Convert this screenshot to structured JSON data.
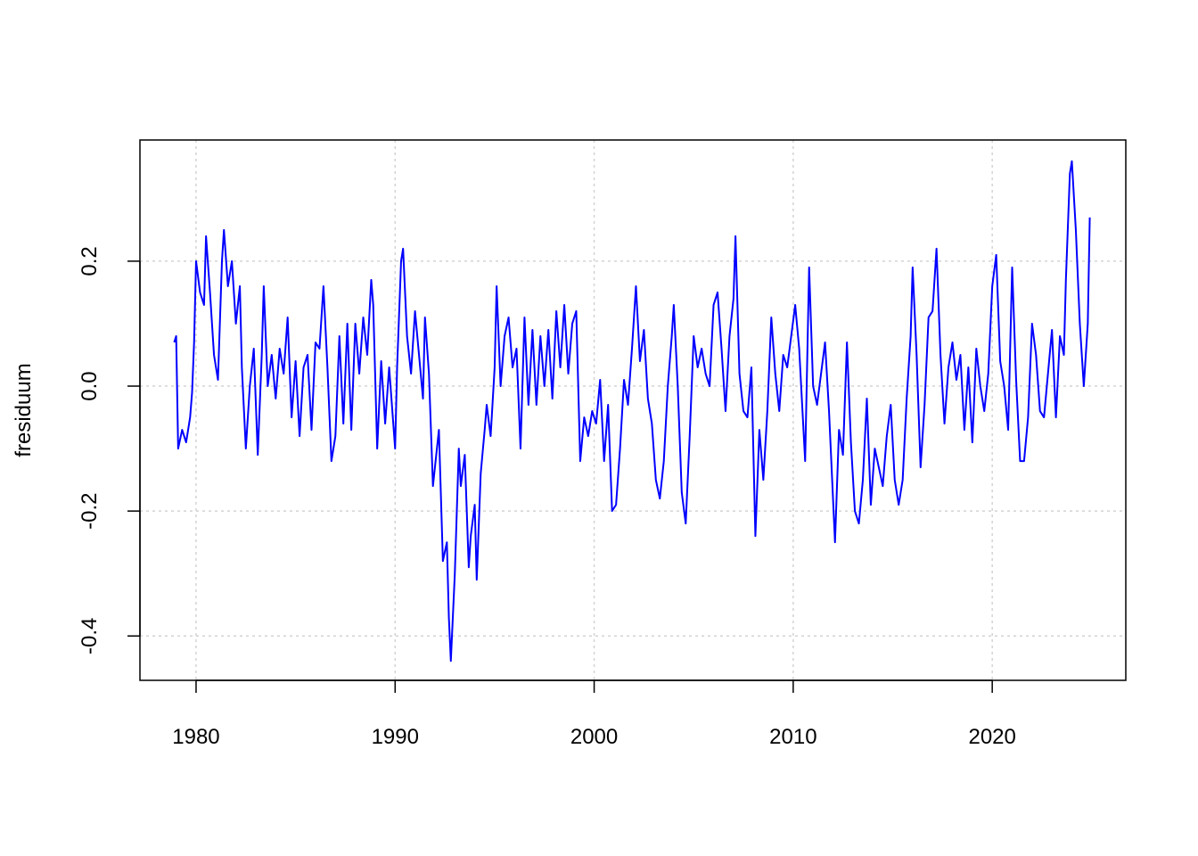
{
  "chart_data": {
    "type": "line",
    "ylabel": "fresiduum",
    "xlim": [
      1977.18,
      2026.71
    ],
    "ylim": [
      -0.471,
      0.394
    ],
    "xticks": [
      1980,
      1990,
      2000,
      2010,
      2020
    ],
    "yticks": [
      -0.4,
      -0.2,
      {
        "value": 0,
        "label": "0.0"
      },
      0.2
    ],
    "grid": true,
    "series": [
      {
        "color": "#0000ff",
        "x": [
          1978.9,
          1979.0,
          1979.1,
          1979.3,
          1979.5,
          1979.7,
          1979.8,
          1979.9,
          1980.0,
          1980.2,
          1980.4,
          1980.5,
          1980.7,
          1980.9,
          1981.1,
          1981.3,
          1981.4,
          1981.6,
          1981.8,
          1982.0,
          1982.2,
          1982.3,
          1982.5,
          1982.7,
          1982.9,
          1983.1,
          1983.3,
          1983.4,
          1983.6,
          1983.8,
          1984.0,
          1984.2,
          1984.4,
          1984.6,
          1984.8,
          1985.0,
          1985.2,
          1985.4,
          1985.6,
          1985.8,
          1986.0,
          1986.2,
          1986.4,
          1986.6,
          1986.8,
          1987.0,
          1987.2,
          1987.4,
          1987.6,
          1987.8,
          1988.0,
          1988.2,
          1988.4,
          1988.6,
          1988.8,
          1988.9,
          1989.1,
          1989.3,
          1989.5,
          1989.7,
          1990.0,
          1990.1,
          1990.3,
          1990.4,
          1990.6,
          1990.8,
          1991.0,
          1991.2,
          1991.4,
          1991.5,
          1991.7,
          1991.9,
          1992.1,
          1992.2,
          1992.4,
          1992.6,
          1992.7,
          1992.8,
          1993.0,
          1993.2,
          1993.3,
          1993.5,
          1993.7,
          1993.8,
          1994.0,
          1994.1,
          1994.3,
          1994.5,
          1994.6,
          1994.8,
          1995.0,
          1995.1,
          1995.3,
          1995.5,
          1995.7,
          1995.9,
          1996.1,
          1996.3,
          1996.5,
          1996.7,
          1996.9,
          1997.1,
          1997.3,
          1997.5,
          1997.7,
          1997.9,
          1998.1,
          1998.3,
          1998.5,
          1998.7,
          1998.9,
          1999.1,
          1999.3,
          1999.5,
          1999.7,
          1999.9,
          2000.1,
          2000.3,
          2000.5,
          2000.7,
          2000.9,
          2001.1,
          2001.3,
          2001.5,
          2001.7,
          2001.9,
          2002.1,
          2002.3,
          2002.5,
          2002.7,
          2002.9,
          2003.1,
          2003.3,
          2003.5,
          2003.7,
          2003.9,
          2004.0,
          2004.2,
          2004.4,
          2004.6,
          2004.8,
          2005.0,
          2005.2,
          2005.4,
          2005.6,
          2005.8,
          2006.0,
          2006.2,
          2006.4,
          2006.6,
          2006.8,
          2007.0,
          2007.1,
          2007.3,
          2007.5,
          2007.7,
          2007.9,
          2008.1,
          2008.3,
          2008.5,
          2008.7,
          2008.9,
          2009.1,
          2009.3,
          2009.5,
          2009.7,
          2009.9,
          2010.1,
          2010.3,
          2010.5,
          2010.6,
          2010.8,
          2011.0,
          2011.2,
          2011.4,
          2011.6,
          2011.8,
          2012.0,
          2012.1,
          2012.3,
          2012.5,
          2012.7,
          2012.9,
          2013.1,
          2013.3,
          2013.5,
          2013.7,
          2013.9,
          2014.1,
          2014.3,
          2014.5,
          2014.7,
          2014.9,
          2015.1,
          2015.3,
          2015.5,
          2015.7,
          2015.9,
          2016.0,
          2016.2,
          2016.4,
          2016.6,
          2016.8,
          2017.0,
          2017.2,
          2017.4,
          2017.6,
          2017.8,
          2018.0,
          2018.2,
          2018.4,
          2018.6,
          2018.8,
          2019.0,
          2019.2,
          2019.4,
          2019.6,
          2019.8,
          2020.0,
          2020.2,
          2020.4,
          2020.6,
          2020.8,
          2021.0,
          2021.2,
          2021.4,
          2021.6,
          2021.8,
          2022.0,
          2022.2,
          2022.4,
          2022.6,
          2022.8,
          2023.0,
          2023.2,
          2023.4,
          2023.6,
          2023.7,
          2023.9,
          2024.0,
          2024.2,
          2024.4,
          2024.6,
          2024.8,
          2024.9
        ],
        "values": [
          0.07,
          0.08,
          -0.1,
          -0.07,
          -0.09,
          -0.05,
          -0.01,
          0.07,
          0.2,
          0.15,
          0.13,
          0.24,
          0.15,
          0.05,
          0.01,
          0.2,
          0.25,
          0.16,
          0.2,
          0.1,
          0.16,
          0.03,
          -0.1,
          0.0,
          0.06,
          -0.11,
          0.05,
          0.16,
          0.0,
          0.05,
          -0.02,
          0.06,
          0.02,
          0.11,
          -0.05,
          0.04,
          -0.08,
          0.03,
          0.05,
          -0.07,
          0.07,
          0.06,
          0.16,
          0.03,
          -0.12,
          -0.08,
          0.08,
          -0.06,
          0.1,
          -0.07,
          0.1,
          0.02,
          0.11,
          0.05,
          0.17,
          0.13,
          -0.1,
          0.04,
          -0.06,
          0.03,
          -0.1,
          0.03,
          0.2,
          0.22,
          0.08,
          0.02,
          0.12,
          0.05,
          -0.02,
          0.11,
          0.02,
          -0.16,
          -0.1,
          -0.07,
          -0.28,
          -0.25,
          -0.37,
          -0.44,
          -0.3,
          -0.1,
          -0.16,
          -0.11,
          -0.29,
          -0.24,
          -0.19,
          -0.31,
          -0.14,
          -0.07,
          -0.03,
          -0.08,
          0.03,
          0.16,
          0.0,
          0.08,
          0.11,
          0.03,
          0.06,
          -0.1,
          0.11,
          -0.03,
          0.09,
          -0.03,
          0.08,
          0.0,
          0.09,
          -0.02,
          0.12,
          0.03,
          0.13,
          0.02,
          0.1,
          0.12,
          -0.12,
          -0.05,
          -0.08,
          -0.04,
          -0.06,
          0.01,
          -0.12,
          -0.03,
          -0.2,
          -0.19,
          -0.1,
          0.01,
          -0.03,
          0.06,
          0.16,
          0.04,
          0.09,
          -0.02,
          -0.06,
          -0.15,
          -0.18,
          -0.12,
          0.0,
          0.08,
          0.13,
          0.0,
          -0.17,
          -0.22,
          -0.08,
          0.08,
          0.03,
          0.06,
          0.02,
          0.0,
          0.13,
          0.15,
          0.06,
          -0.04,
          0.08,
          0.14,
          0.24,
          0.02,
          -0.04,
          -0.05,
          0.03,
          -0.24,
          -0.07,
          -0.15,
          -0.04,
          0.11,
          0.02,
          -0.04,
          0.05,
          0.03,
          0.08,
          0.13,
          0.06,
          -0.06,
          -0.12,
          0.19,
          0.0,
          -0.03,
          0.02,
          0.07,
          -0.04,
          -0.18,
          -0.25,
          -0.07,
          -0.11,
          0.07,
          -0.09,
          -0.2,
          -0.22,
          -0.15,
          -0.02,
          -0.19,
          -0.1,
          -0.13,
          -0.16,
          -0.08,
          -0.03,
          -0.15,
          -0.19,
          -0.15,
          -0.02,
          0.08,
          0.19,
          0.05,
          -0.13,
          -0.03,
          0.11,
          0.12,
          0.22,
          0.05,
          -0.06,
          0.03,
          0.07,
          0.01,
          0.05,
          -0.07,
          0.03,
          -0.09,
          0.06,
          0.0,
          -0.04,
          0.02,
          0.16,
          0.21,
          0.04,
          0.0,
          -0.07,
          0.19,
          0.01,
          -0.12,
          -0.12,
          -0.05,
          0.1,
          0.05,
          -0.04,
          -0.05,
          0.02,
          0.09,
          -0.05,
          0.08,
          0.05,
          0.17,
          0.34,
          0.36,
          0.25,
          0.1,
          0.0,
          0.1,
          0.27
        ]
      }
    ]
  }
}
